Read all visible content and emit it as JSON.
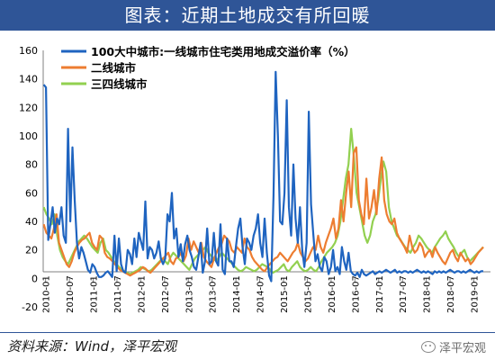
{
  "header": {
    "title": "图表：近期土地成交有所回暖"
  },
  "footer": {
    "source": "资料来源：Wind，泽平宏观",
    "watermark": "泽平宏观"
  },
  "colors": {
    "title_bar": "#2f5597",
    "series_tier100": "#1f64c0",
    "series_tier2": "#ed7d31",
    "series_tier34": "#92d050"
  },
  "chart_data": {
    "type": "line",
    "ylim": [
      -20,
      160
    ],
    "yticks": [
      -20,
      0,
      20,
      40,
      60,
      80,
      100,
      120,
      140,
      160
    ],
    "xticks": [
      "2010-01",
      "2010-07",
      "2011-01",
      "2011-07",
      "2012-01",
      "2012-07",
      "2013-01",
      "2013-07",
      "2014-01",
      "2014-07",
      "2015-01",
      "2015-07",
      "2016-01",
      "2016-07",
      "2017-01",
      "2017-07",
      "2018-01",
      "2018-07",
      "2019-01"
    ],
    "grid": false,
    "legend_position": "top",
    "series": [
      {
        "name": "100大中城市:一线城市住宅类用地成交溢价率（%）",
        "values": [
          136,
          134,
          27,
          38,
          50,
          32,
          42,
          38,
          50,
          30,
          25,
          105,
          40,
          92,
          55,
          25,
          14,
          22,
          18,
          12,
          6,
          4,
          10,
          8,
          4,
          1,
          1,
          2,
          4,
          5,
          3,
          1,
          30,
          5,
          28,
          10,
          5,
          4,
          20,
          17,
          10,
          28,
          15,
          32,
          26,
          20,
          54,
          14,
          22,
          20,
          14,
          18,
          26,
          14,
          10,
          14,
          45,
          40,
          60,
          28,
          35,
          15,
          24,
          12,
          24,
          30,
          20,
          15,
          8,
          6,
          15,
          25,
          4,
          12,
          35,
          10,
          12,
          32,
          12,
          9,
          38,
          6,
          3,
          28,
          12,
          12,
          8,
          22,
          35,
          42,
          22,
          10,
          28,
          25,
          20,
          30,
          35,
          45,
          25,
          15,
          42,
          18,
          2,
          -2,
          58,
          145,
          100,
          40,
          38,
          60,
          125,
          50,
          30,
          80,
          42,
          25,
          50,
          20,
          8,
          25,
          117,
          52,
          32,
          12,
          17,
          8,
          5,
          15,
          12,
          3,
          8,
          20,
          5,
          8,
          3,
          22,
          12,
          6,
          18,
          5,
          3,
          2,
          4,
          1,
          6,
          3,
          2,
          3,
          4,
          5,
          3,
          4,
          5,
          4,
          5,
          6,
          5,
          4,
          5,
          6,
          4,
          5,
          4,
          5,
          5,
          4,
          5,
          4,
          5,
          6,
          5,
          4,
          5,
          4,
          5,
          4,
          3,
          5,
          4,
          5,
          4,
          5,
          4,
          5,
          6,
          5,
          4,
          5,
          5,
          4,
          5,
          4,
          5,
          6,
          5,
          4,
          5,
          4,
          5,
          5
        ]
      },
      {
        "name": "二线城市",
        "values": [
          38,
          32,
          30,
          28,
          35,
          45,
          25,
          20,
          15,
          10,
          8,
          12,
          18,
          22,
          25,
          27,
          28,
          30,
          32,
          25,
          22,
          20,
          30,
          28,
          18,
          15,
          14,
          12,
          10,
          8,
          6,
          5,
          4,
          3,
          2,
          3,
          4,
          5,
          6,
          8,
          7,
          5,
          4,
          6,
          8,
          10,
          12,
          14,
          16,
          18,
          12,
          10,
          14,
          15,
          18,
          12,
          16,
          28,
          20,
          26,
          22,
          18,
          25,
          15,
          12,
          10,
          8,
          14,
          18,
          22,
          24,
          30,
          28,
          26,
          20,
          18,
          22,
          20,
          18,
          28,
          22,
          20,
          15,
          12,
          10,
          8,
          6,
          5,
          8,
          10,
          12,
          14,
          15,
          18,
          16,
          14,
          12,
          15,
          18,
          20,
          25,
          18,
          15,
          12,
          14,
          18,
          22,
          20,
          30,
          22,
          18,
          25,
          30,
          35,
          42,
          28,
          35,
          55,
          40,
          60,
          75,
          50,
          88,
          92,
          55,
          45,
          38,
          70,
          42,
          50,
          62,
          45,
          70,
          85,
          55,
          45,
          40,
          38,
          42,
          32,
          28,
          25,
          22,
          18,
          30,
          22,
          18,
          20,
          25,
          22,
          15,
          18,
          20,
          15,
          22,
          18,
          15,
          12,
          10,
          14,
          18,
          20,
          15,
          12,
          18,
          15,
          12,
          14,
          10,
          12,
          15,
          18,
          20,
          22
        ]
      },
      {
        "name": "三四线城市",
        "values": [
          50,
          45,
          42,
          38,
          45,
          30,
          20,
          15,
          12,
          10,
          14,
          18,
          22,
          26,
          28,
          30,
          28,
          25,
          22,
          20,
          18,
          25,
          28,
          20,
          18,
          15,
          12,
          10,
          8,
          6,
          5,
          4,
          3,
          4,
          5,
          6,
          8,
          7,
          6,
          5,
          6,
          8,
          10,
          12,
          14,
          12,
          10,
          15,
          18,
          16,
          14,
          12,
          10,
          8,
          6,
          10,
          14,
          16,
          18,
          20,
          22,
          18,
          16,
          14,
          12,
          15,
          18,
          16,
          14,
          12,
          10,
          8,
          6,
          5,
          6,
          8,
          7,
          6,
          5,
          6,
          8,
          10,
          9,
          8,
          6,
          4,
          5,
          6,
          8,
          10,
          6,
          5,
          8,
          10,
          12,
          8,
          6,
          5,
          6,
          8,
          6,
          5,
          8,
          12,
          15,
          18,
          20,
          22,
          25,
          30,
          40,
          55,
          70,
          80,
          105,
          85,
          60,
          50,
          40,
          30,
          25,
          30,
          40,
          45,
          55,
          70,
          82,
          75,
          50,
          40,
          35,
          30,
          28,
          25,
          22,
          20,
          18,
          22,
          25,
          30,
          28,
          25,
          22,
          20,
          18,
          22,
          25,
          28,
          30,
          33,
          28,
          25,
          22,
          18,
          15,
          18,
          20,
          15,
          12,
          14,
          16,
          18,
          20,
          22
        ]
      }
    ]
  }
}
